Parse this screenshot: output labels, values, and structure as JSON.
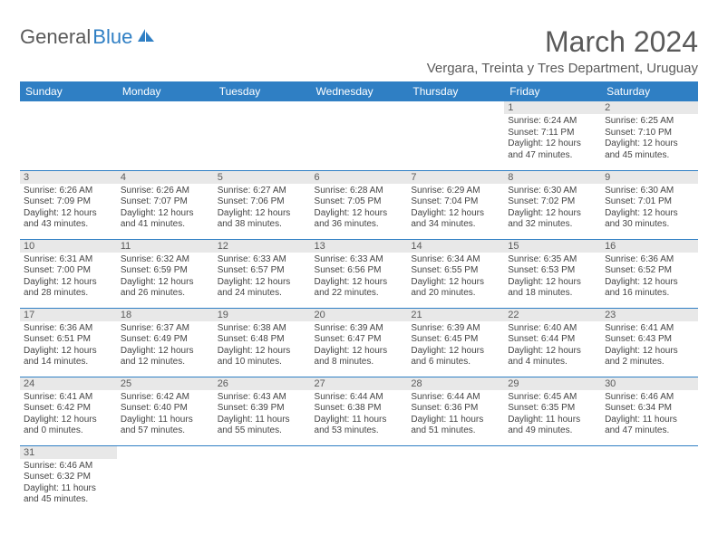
{
  "brand": {
    "part1": "General",
    "part2": "Blue"
  },
  "title": "March 2024",
  "location": "Vergara, Treinta y Tres Department, Uruguay",
  "colors": {
    "header_bg": "#2f7fc4",
    "header_text": "#ffffff",
    "daynum_bg": "#e8e8e8",
    "text_body": "#444444",
    "text_title": "#5a5a5a",
    "cell_border": "#2f7fc4",
    "background": "#ffffff"
  },
  "day_labels": [
    "Sunday",
    "Monday",
    "Tuesday",
    "Wednesday",
    "Thursday",
    "Friday",
    "Saturday"
  ],
  "weeks": [
    [
      null,
      null,
      null,
      null,
      null,
      {
        "n": "1",
        "sunrise": "6:24 AM",
        "sunset": "7:11 PM",
        "dl1": "Daylight: 12 hours",
        "dl2": "and 47 minutes."
      },
      {
        "n": "2",
        "sunrise": "6:25 AM",
        "sunset": "7:10 PM",
        "dl1": "Daylight: 12 hours",
        "dl2": "and 45 minutes."
      }
    ],
    [
      {
        "n": "3",
        "sunrise": "6:26 AM",
        "sunset": "7:09 PM",
        "dl1": "Daylight: 12 hours",
        "dl2": "and 43 minutes."
      },
      {
        "n": "4",
        "sunrise": "6:26 AM",
        "sunset": "7:07 PM",
        "dl1": "Daylight: 12 hours",
        "dl2": "and 41 minutes."
      },
      {
        "n": "5",
        "sunrise": "6:27 AM",
        "sunset": "7:06 PM",
        "dl1": "Daylight: 12 hours",
        "dl2": "and 38 minutes."
      },
      {
        "n": "6",
        "sunrise": "6:28 AM",
        "sunset": "7:05 PM",
        "dl1": "Daylight: 12 hours",
        "dl2": "and 36 minutes."
      },
      {
        "n": "7",
        "sunrise": "6:29 AM",
        "sunset": "7:04 PM",
        "dl1": "Daylight: 12 hours",
        "dl2": "and 34 minutes."
      },
      {
        "n": "8",
        "sunrise": "6:30 AM",
        "sunset": "7:02 PM",
        "dl1": "Daylight: 12 hours",
        "dl2": "and 32 minutes."
      },
      {
        "n": "9",
        "sunrise": "6:30 AM",
        "sunset": "7:01 PM",
        "dl1": "Daylight: 12 hours",
        "dl2": "and 30 minutes."
      }
    ],
    [
      {
        "n": "10",
        "sunrise": "6:31 AM",
        "sunset": "7:00 PM",
        "dl1": "Daylight: 12 hours",
        "dl2": "and 28 minutes."
      },
      {
        "n": "11",
        "sunrise": "6:32 AM",
        "sunset": "6:59 PM",
        "dl1": "Daylight: 12 hours",
        "dl2": "and 26 minutes."
      },
      {
        "n": "12",
        "sunrise": "6:33 AM",
        "sunset": "6:57 PM",
        "dl1": "Daylight: 12 hours",
        "dl2": "and 24 minutes."
      },
      {
        "n": "13",
        "sunrise": "6:33 AM",
        "sunset": "6:56 PM",
        "dl1": "Daylight: 12 hours",
        "dl2": "and 22 minutes."
      },
      {
        "n": "14",
        "sunrise": "6:34 AM",
        "sunset": "6:55 PM",
        "dl1": "Daylight: 12 hours",
        "dl2": "and 20 minutes."
      },
      {
        "n": "15",
        "sunrise": "6:35 AM",
        "sunset": "6:53 PM",
        "dl1": "Daylight: 12 hours",
        "dl2": "and 18 minutes."
      },
      {
        "n": "16",
        "sunrise": "6:36 AM",
        "sunset": "6:52 PM",
        "dl1": "Daylight: 12 hours",
        "dl2": "and 16 minutes."
      }
    ],
    [
      {
        "n": "17",
        "sunrise": "6:36 AM",
        "sunset": "6:51 PM",
        "dl1": "Daylight: 12 hours",
        "dl2": "and 14 minutes."
      },
      {
        "n": "18",
        "sunrise": "6:37 AM",
        "sunset": "6:49 PM",
        "dl1": "Daylight: 12 hours",
        "dl2": "and 12 minutes."
      },
      {
        "n": "19",
        "sunrise": "6:38 AM",
        "sunset": "6:48 PM",
        "dl1": "Daylight: 12 hours",
        "dl2": "and 10 minutes."
      },
      {
        "n": "20",
        "sunrise": "6:39 AM",
        "sunset": "6:47 PM",
        "dl1": "Daylight: 12 hours",
        "dl2": "and 8 minutes."
      },
      {
        "n": "21",
        "sunrise": "6:39 AM",
        "sunset": "6:45 PM",
        "dl1": "Daylight: 12 hours",
        "dl2": "and 6 minutes."
      },
      {
        "n": "22",
        "sunrise": "6:40 AM",
        "sunset": "6:44 PM",
        "dl1": "Daylight: 12 hours",
        "dl2": "and 4 minutes."
      },
      {
        "n": "23",
        "sunrise": "6:41 AM",
        "sunset": "6:43 PM",
        "dl1": "Daylight: 12 hours",
        "dl2": "and 2 minutes."
      }
    ],
    [
      {
        "n": "24",
        "sunrise": "6:41 AM",
        "sunset": "6:42 PM",
        "dl1": "Daylight: 12 hours",
        "dl2": "and 0 minutes."
      },
      {
        "n": "25",
        "sunrise": "6:42 AM",
        "sunset": "6:40 PM",
        "dl1": "Daylight: 11 hours",
        "dl2": "and 57 minutes."
      },
      {
        "n": "26",
        "sunrise": "6:43 AM",
        "sunset": "6:39 PM",
        "dl1": "Daylight: 11 hours",
        "dl2": "and 55 minutes."
      },
      {
        "n": "27",
        "sunrise": "6:44 AM",
        "sunset": "6:38 PM",
        "dl1": "Daylight: 11 hours",
        "dl2": "and 53 minutes."
      },
      {
        "n": "28",
        "sunrise": "6:44 AM",
        "sunset": "6:36 PM",
        "dl1": "Daylight: 11 hours",
        "dl2": "and 51 minutes."
      },
      {
        "n": "29",
        "sunrise": "6:45 AM",
        "sunset": "6:35 PM",
        "dl1": "Daylight: 11 hours",
        "dl2": "and 49 minutes."
      },
      {
        "n": "30",
        "sunrise": "6:46 AM",
        "sunset": "6:34 PM",
        "dl1": "Daylight: 11 hours",
        "dl2": "and 47 minutes."
      }
    ],
    [
      {
        "n": "31",
        "sunrise": "6:46 AM",
        "sunset": "6:32 PM",
        "dl1": "Daylight: 11 hours",
        "dl2": "and 45 minutes."
      },
      null,
      null,
      null,
      null,
      null,
      null
    ]
  ],
  "labels": {
    "sunrise_prefix": "Sunrise: ",
    "sunset_prefix": "Sunset: "
  }
}
